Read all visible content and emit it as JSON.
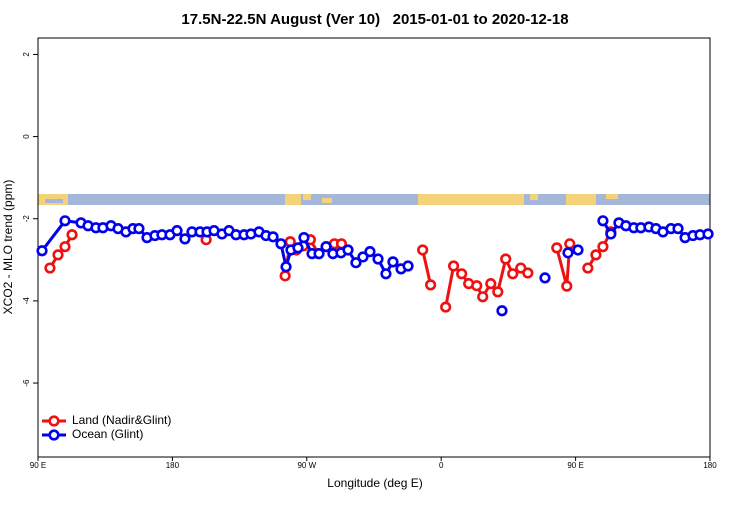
{
  "chart_data": {
    "type": "line",
    "title": "17.5N-22.5N August (Ver 10)   2015-01-01 to 2020-12-18",
    "x_label": "Longitude (deg E)",
    "y_label": "XCO2 - MLO trend (ppm)",
    "xlim": [
      90,
      540
    ],
    "xticks": [
      {
        "value": 90,
        "label": "90 E"
      },
      180,
      {
        "value": 270,
        "label": "90 W"
      },
      {
        "value": 360,
        "label": "0"
      },
      {
        "value": 450,
        "label": "90 E"
      },
      {
        "value": 540,
        "label": "180"
      }
    ],
    "ylim": [
      -7.8,
      2.4
    ],
    "yticks": [
      2,
      0,
      -2,
      -4,
      -6
    ],
    "legend": "bottom-left",
    "series": [
      {
        "name": "Land (Nadir&Glint)",
        "color": "#ee1111",
        "x": [
          98.0,
          103.4,
          108.1,
          112.8,
          null,
          202.6,
          null,
          255.5,
          258.9,
          263.0,
          267.7,
          272.4,
          277.8,
          283.2,
          288.5,
          293.2,
          null,
          347.6,
          352.9,
          null,
          363.0,
          368.3,
          373.7,
          378.4,
          383.8,
          387.8,
          393.2,
          397.9,
          403.2,
          407.9,
          413.3,
          418.0,
          null,
          437.4,
          444.1,
          446.1,
          null,
          458.2,
          463.6,
          468.3,
          473.6
        ],
        "values": [
          -3.2,
          -2.88,
          -2.68,
          -2.39,
          null,
          -2.51,
          null,
          -3.39,
          -2.56,
          -2.76,
          -2.66,
          -2.51,
          -2.85,
          -2.68,
          -2.61,
          -2.61,
          null,
          -2.76,
          -3.61,
          null,
          -4.15,
          -3.15,
          -3.34,
          -3.58,
          -3.63,
          -3.9,
          -3.58,
          -3.78,
          -2.98,
          -3.34,
          -3.2,
          -3.32,
          null,
          -2.71,
          -3.64,
          -2.61,
          null,
          -3.2,
          -2.88,
          -2.68,
          -2.32
        ]
      },
      {
        "name": "Ocean (Glint)",
        "color": "#0000ee",
        "x": [
          92.7,
          108.1,
          118.8,
          123.5,
          128.8,
          133.5,
          138.9,
          143.6,
          148.9,
          153.6,
          157.6,
          163.0,
          168.3,
          173.0,
          178.4,
          183.1,
          188.4,
          193.1,
          198.5,
          203.2,
          207.9,
          213.2,
          217.9,
          222.6,
          228.0,
          232.6,
          238.0,
          242.7,
          247.4,
          252.7,
          256.1,
          259.4,
          264.1,
          268.1,
          273.5,
          278.2,
          282.9,
          287.5,
          292.9,
          297.6,
          302.9,
          307.6,
          312.3,
          317.7,
          323.0,
          327.7,
          333.1,
          337.8,
          null,
          400.7,
          null,
          429.5,
          null,
          444.9,
          451.6,
          null,
          468.3,
          473.6,
          479.0,
          483.7,
          489.0,
          493.7,
          499.1,
          503.8,
          508.5,
          513.9,
          518.6,
          523.3,
          528.6,
          533.3,
          538.7
        ],
        "values": [
          -2.78,
          -2.05,
          -2.1,
          -2.17,
          -2.22,
          -2.22,
          -2.17,
          -2.24,
          -2.32,
          -2.24,
          -2.24,
          -2.46,
          -2.41,
          -2.39,
          -2.39,
          -2.29,
          -2.49,
          -2.32,
          -2.32,
          -2.32,
          -2.29,
          -2.37,
          -2.29,
          -2.39,
          -2.39,
          -2.37,
          -2.32,
          -2.41,
          -2.44,
          -2.61,
          -3.17,
          -2.76,
          -2.71,
          -2.46,
          -2.85,
          -2.85,
          -2.68,
          -2.85,
          -2.83,
          -2.76,
          -3.07,
          -2.93,
          -2.8,
          -2.98,
          -3.34,
          -3.05,
          -3.22,
          -3.15,
          null,
          -4.24,
          null,
          -3.44,
          null,
          -2.83,
          -2.76,
          null,
          -2.05,
          -2.37,
          -2.1,
          -2.17,
          -2.22,
          -2.22,
          -2.2,
          -2.24,
          -2.32,
          -2.24,
          -2.24,
          -2.46,
          -2.41,
          -2.39,
          -2.37
        ]
      }
    ]
  }
}
